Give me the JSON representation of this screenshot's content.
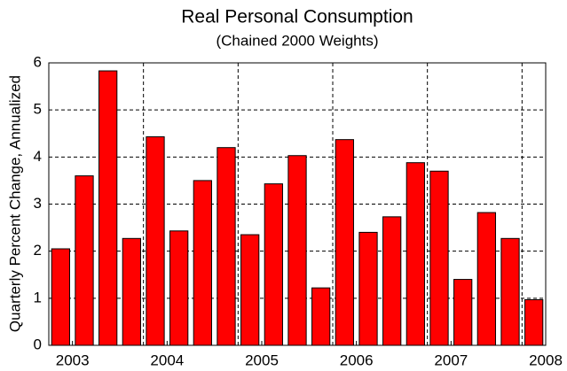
{
  "chart_data": {
    "type": "bar",
    "title": "Real Personal Consumption",
    "subtitle": "(Chained 2000 Weights)",
    "y_label": "Quarterly Percent Change, Annualized",
    "values": [
      2.05,
      3.6,
      5.83,
      2.27,
      4.43,
      2.43,
      3.5,
      4.2,
      2.35,
      3.43,
      4.03,
      1.22,
      4.37,
      2.4,
      2.73,
      3.88,
      3.7,
      1.4,
      2.82,
      2.27,
      0.97
    ],
    "color": "#ff0000",
    "xlim": [
      0,
      21
    ],
    "xticks": [
      {
        "value": 1,
        "label": "2003"
      },
      {
        "value": 5,
        "label": "2004"
      },
      {
        "value": 9,
        "label": "2005"
      },
      {
        "value": 13,
        "label": "2006"
      },
      {
        "value": 17,
        "label": "2007"
      },
      {
        "value": 21,
        "label": "2008"
      }
    ],
    "xgrid": [
      4,
      8,
      12,
      16,
      20
    ],
    "ylim": [
      0,
      6
    ],
    "yticks": [
      0,
      1,
      2,
      3,
      4,
      5,
      6
    ],
    "grid": true
  }
}
